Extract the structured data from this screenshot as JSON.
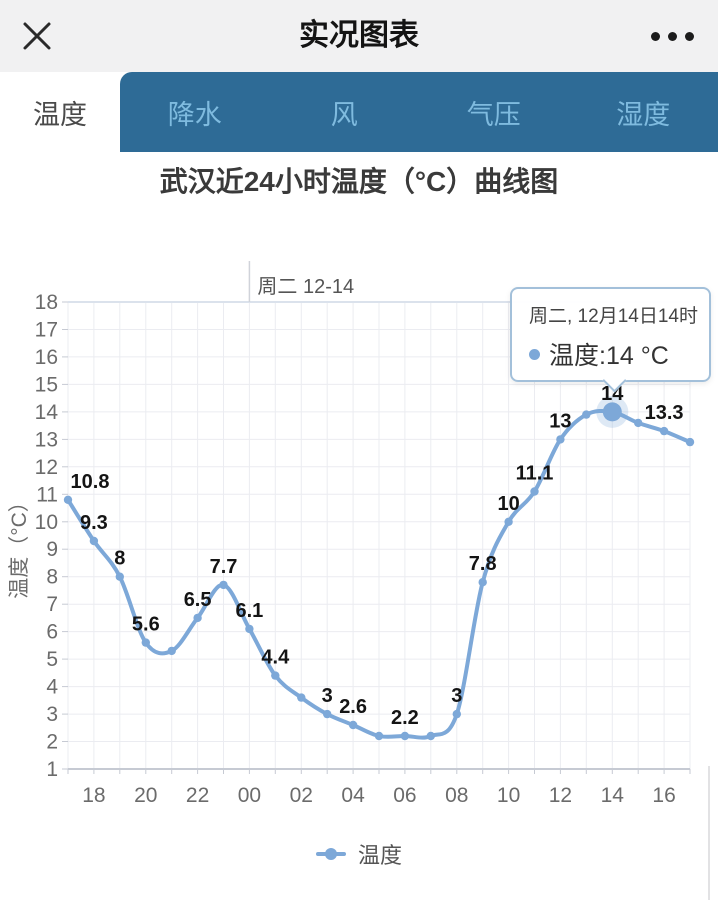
{
  "header": {
    "title": "实况图表"
  },
  "tabs": {
    "items": [
      {
        "label": "温度",
        "active": true
      },
      {
        "label": "降水",
        "active": false
      },
      {
        "label": "风",
        "active": false
      },
      {
        "label": "气压",
        "active": false
      },
      {
        "label": "湿度",
        "active": false
      }
    ]
  },
  "tooltip": {
    "date": "周二, 12月14日14时",
    "value_text": "温度:14 °C"
  },
  "colors": {
    "tab_bar": "#2e6b96",
    "tab_inactive_text": "#7fbbdf",
    "line": "#7da8d8",
    "data_label": "#141414",
    "axis_text": "#6b6b6b"
  },
  "chart_data": {
    "type": "line",
    "title": "武汉近24小时温度（°C）曲线图",
    "series_name": "温度",
    "ylabel": "温度（°C）",
    "ylim": [
      1,
      18
    ],
    "y_ticks": [
      1,
      2,
      3,
      4,
      5,
      6,
      7,
      8,
      9,
      10,
      11,
      12,
      13,
      14,
      15,
      16,
      17,
      18
    ],
    "x_ticks_shown": [
      "18",
      "20",
      "22",
      "00",
      "02",
      "04",
      "06",
      "08",
      "10",
      "12",
      "14",
      "16"
    ],
    "grid": true,
    "legend_position": "bottom",
    "line_color": "#7da8d8",
    "day_marker": "周二 12-14",
    "day_marker_index": 7,
    "highlighted_index": 21,
    "points": [
      {
        "hour": "17",
        "value": 10.8,
        "label": "10.8"
      },
      {
        "hour": "18",
        "value": 9.3,
        "label": "9.3"
      },
      {
        "hour": "19",
        "value": 8,
        "label": "8"
      },
      {
        "hour": "20",
        "value": 5.6,
        "label": "5.6"
      },
      {
        "hour": "21",
        "value": 5.3,
        "label": ""
      },
      {
        "hour": "22",
        "value": 6.5,
        "label": "6.5"
      },
      {
        "hour": "23",
        "value": 7.7,
        "label": "7.7"
      },
      {
        "hour": "00",
        "value": 6.1,
        "label": "6.1"
      },
      {
        "hour": "01",
        "value": 4.4,
        "label": "4.4"
      },
      {
        "hour": "02",
        "value": 3.6,
        "label": ""
      },
      {
        "hour": "03",
        "value": 3,
        "label": "3"
      },
      {
        "hour": "04",
        "value": 2.6,
        "label": "2.6"
      },
      {
        "hour": "05",
        "value": 2.2,
        "label": ""
      },
      {
        "hour": "06",
        "value": 2.2,
        "label": "2.2"
      },
      {
        "hour": "07",
        "value": 2.2,
        "label": ""
      },
      {
        "hour": "08",
        "value": 3,
        "label": "3"
      },
      {
        "hour": "09",
        "value": 7.8,
        "label": "7.8"
      },
      {
        "hour": "10",
        "value": 10,
        "label": "10"
      },
      {
        "hour": "11",
        "value": 11.1,
        "label": "11.1"
      },
      {
        "hour": "12",
        "value": 13,
        "label": "13"
      },
      {
        "hour": "13",
        "value": 13.9,
        "label": ""
      },
      {
        "hour": "14",
        "value": 14,
        "label": "14"
      },
      {
        "hour": "15",
        "value": 13.6,
        "label": ""
      },
      {
        "hour": "16",
        "value": 13.3,
        "label": "13.3"
      },
      {
        "hour": "17",
        "value": 12.9,
        "label": ""
      }
    ]
  }
}
